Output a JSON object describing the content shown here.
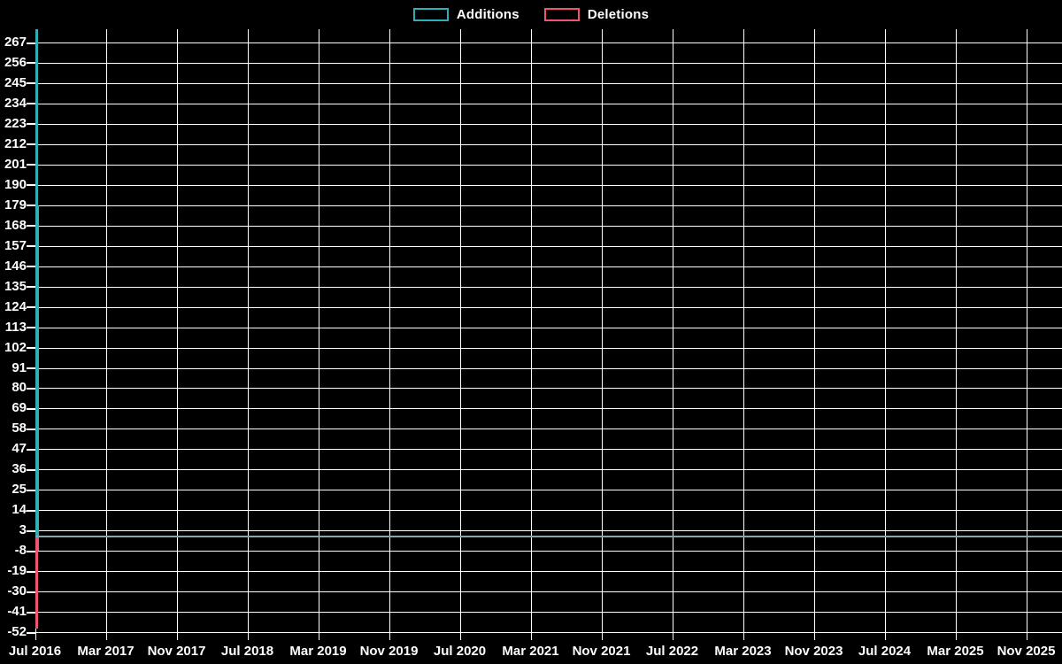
{
  "legend": {
    "items": [
      {
        "label": "Additions",
        "color": "#2fafb6"
      },
      {
        "label": "Deletions",
        "color": "#ef5571"
      }
    ]
  },
  "chart_data": {
    "type": "area",
    "title": "",
    "xlabel": "",
    "ylabel": "",
    "background_color": "#000000",
    "grid": true,
    "grid_color": "#ffffff",
    "text_color": "#ffffff",
    "legend_position": "top-center",
    "y_ticks": [
      267,
      256,
      245,
      234,
      223,
      212,
      201,
      190,
      179,
      168,
      157,
      146,
      135,
      124,
      113,
      102,
      91,
      80,
      69,
      58,
      47,
      36,
      25,
      14,
      3,
      -8,
      -19,
      -30,
      -41,
      -52
    ],
    "y_tick_step": 11,
    "ylim": [
      -55,
      274
    ],
    "x_ticks": [
      "Jul 2016",
      "Mar 2017",
      "Nov 2017",
      "Jul 2018",
      "Mar 2019",
      "Nov 2019",
      "Jul 2020",
      "Mar 2021",
      "Nov 2021",
      "Jul 2022",
      "Mar 2023",
      "Nov 2023",
      "Jul 2024",
      "Mar 2025",
      "Nov 2025"
    ],
    "x_tick_interval_months": 8,
    "zero_line_color": "#8aa4ae",
    "zero_line_value": 0,
    "series": [
      {
        "name": "Additions",
        "color": "#2fafb6",
        "baseline_value": 0,
        "spikes": [
          {
            "x_label": "Jul 2016",
            "value": 275,
            "clipped_at_plot_top": true
          },
          {
            "x_label": "Jul 2016",
            "value": 179,
            "clipped_at_plot_top": false
          }
        ],
        "all_other_weeks_value": 0
      },
      {
        "name": "Deletions",
        "color": "#ef5571",
        "baseline_value": 0,
        "spikes": [
          {
            "x_label": "Jul 2016",
            "value": -50,
            "clipped_at_plot_top": false
          },
          {
            "x_label": "Jul 2016",
            "value": -8,
            "clipped_at_plot_top": false
          }
        ],
        "all_other_weeks_value": 0
      }
    ]
  }
}
